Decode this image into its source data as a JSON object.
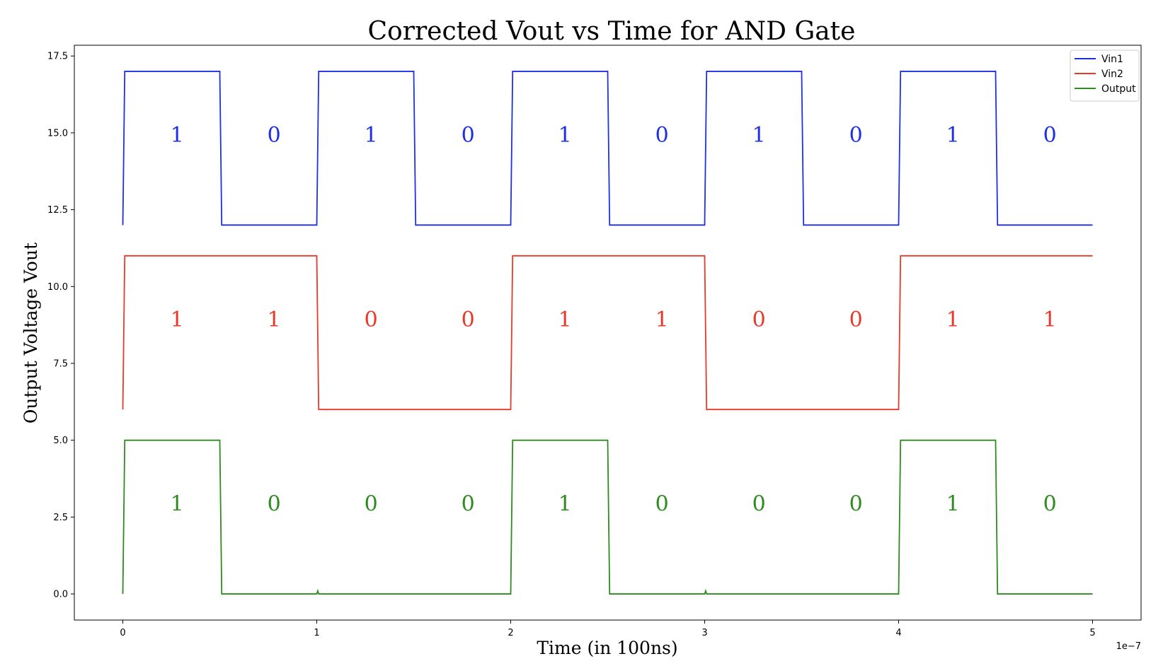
{
  "chart_data": {
    "type": "line",
    "title": "Corrected Vout vs Time for AND Gate",
    "xlabel": "Time (in 100ns)",
    "ylabel": "Output Voltage Vout",
    "x_offset_label": "1e−7",
    "xlim": [
      -0.25,
      5.25
    ],
    "ylim": [
      -0.85,
      17.85
    ],
    "xticks": [
      0,
      1,
      2,
      3,
      4,
      5
    ],
    "xtick_labels": [
      "0",
      "1",
      "2",
      "3",
      "4",
      "5"
    ],
    "yticks": [
      0,
      2.5,
      5,
      7.5,
      10,
      12.5,
      15,
      17.5
    ],
    "ytick_labels": [
      "0.0",
      "2.5",
      "5.0",
      "7.5",
      "10.0",
      "12.5",
      "15.0",
      "17.5"
    ],
    "grid": false,
    "legend_position": "top-right",
    "series": [
      {
        "name": "Vin1",
        "color": "#1f2fe6",
        "x": [
          0,
          0.01,
          0.5,
          0.51,
          1.0,
          1.01,
          1.5,
          1.51,
          2.0,
          2.01,
          2.5,
          2.51,
          3.0,
          3.01,
          3.5,
          3.51,
          4.0,
          4.01,
          4.5,
          4.51,
          5.0
        ],
        "y": [
          12,
          17,
          17,
          12,
          12,
          17,
          17,
          12,
          12,
          17,
          17,
          12,
          12,
          17,
          17,
          12,
          12,
          17,
          17,
          12,
          12
        ]
      },
      {
        "name": "Vin2",
        "color": "#e8392a",
        "x": [
          0,
          0.01,
          1.0,
          1.01,
          2.0,
          2.01,
          3.0,
          3.01,
          4.0,
          4.01,
          5.0
        ],
        "y": [
          6,
          11,
          11,
          6,
          6,
          11,
          11,
          6,
          6,
          11,
          11
        ]
      },
      {
        "name": "Output",
        "color": "#2e8b1f",
        "x": [
          0,
          0.01,
          0.5,
          0.51,
          1.0,
          1.005,
          1.01,
          2.0,
          2.01,
          2.5,
          2.51,
          3.0,
          3.005,
          3.01,
          4.0,
          4.01,
          4.5,
          4.51,
          5.0
        ],
        "y": [
          0,
          5,
          5,
          0,
          0,
          0.1,
          0,
          0,
          5,
          5,
          0,
          0,
          0.1,
          0,
          0,
          5,
          5,
          0,
          0
        ]
      }
    ],
    "annotations": [
      {
        "color": "#1f2fe6",
        "y": 14.7,
        "x": [
          0.28,
          0.78,
          1.28,
          1.78,
          2.28,
          2.78,
          3.28,
          3.78,
          4.28,
          4.78
        ],
        "labels": [
          "1",
          "0",
          "1",
          "0",
          "1",
          "0",
          "1",
          "0",
          "1",
          "0"
        ]
      },
      {
        "color": "#e8392a",
        "y": 8.7,
        "x": [
          0.28,
          0.78,
          1.28,
          1.78,
          2.28,
          2.78,
          3.28,
          3.78,
          4.28,
          4.78
        ],
        "labels": [
          "1",
          "1",
          "0",
          "0",
          "1",
          "1",
          "0",
          "0",
          "1",
          "1"
        ]
      },
      {
        "color": "#2e8b1f",
        "y": 2.7,
        "x": [
          0.28,
          0.78,
          1.28,
          1.78,
          2.28,
          2.78,
          3.28,
          3.78,
          4.28,
          4.78
        ],
        "labels": [
          "1",
          "0",
          "0",
          "0",
          "1",
          "0",
          "0",
          "0",
          "1",
          "0"
        ]
      }
    ]
  }
}
